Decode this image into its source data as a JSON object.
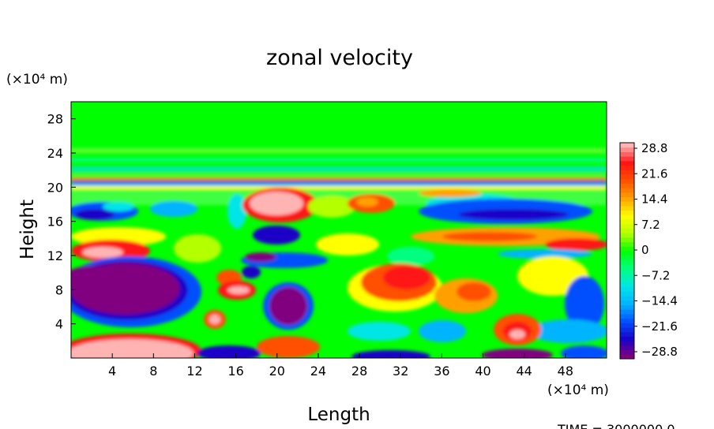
{
  "chart_data": {
    "type": "heatmap",
    "title": "zonal velocity",
    "xlabel": "Length",
    "ylabel": "Height",
    "x_unit": "(×10⁴ m)",
    "y_unit": "(×10⁴ m)",
    "xlim": [
      0,
      52
    ],
    "ylim": [
      0,
      30
    ],
    "x_ticks": [
      4,
      8,
      12,
      16,
      20,
      24,
      28,
      32,
      36,
      40,
      44,
      48
    ],
    "y_ticks": [
      4,
      8,
      12,
      16,
      20,
      24,
      28
    ],
    "colorbar": {
      "labels": [
        "28.8",
        "21.6",
        "14.4",
        "7.2",
        "0",
        "−7.2",
        "−14.4",
        "−21.6",
        "−28.8"
      ],
      "min": -28.8,
      "max": 28.8,
      "colors": [
        "#800080",
        "#1a00c8",
        "#0050ff",
        "#00b4ff",
        "#00e6e6",
        "#00ff80",
        "#00ff00",
        "#b4ff00",
        "#ffff00",
        "#ffa000",
        "#ff5000",
        "#ff1414",
        "#ffb4b4"
      ]
    },
    "grid": false,
    "footer": "TIME = 3000000.0"
  }
}
